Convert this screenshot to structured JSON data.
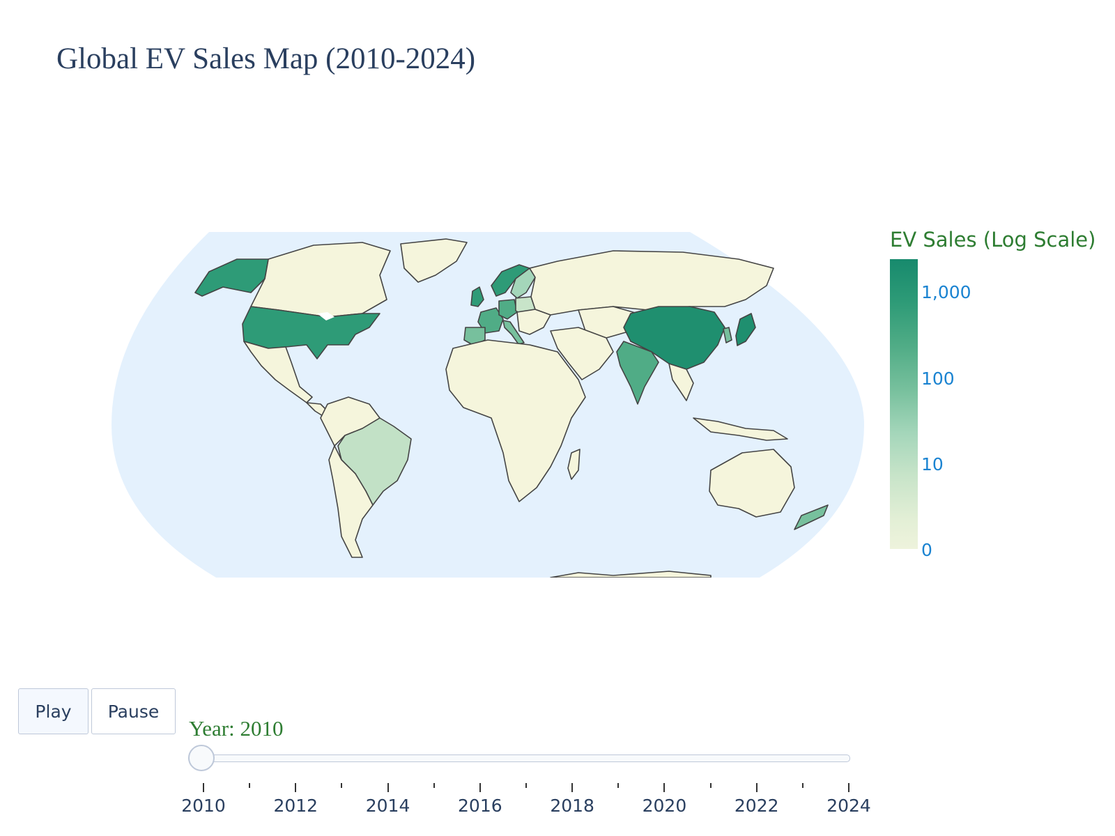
{
  "title": "Global EV Sales Map (2010-2024)",
  "colorbar": {
    "title": "EV Sales (Log Scale)",
    "ticks": [
      "1,000",
      "100",
      "10",
      "0"
    ],
    "colors": [
      "#178a6d",
      "#2e9b77",
      "#50ac86",
      "#77c09d",
      "#a4d6ba",
      "#c8e4c9",
      "#eef3dc"
    ]
  },
  "controls": {
    "play_label": "Play",
    "pause_label": "Pause"
  },
  "slider": {
    "current_label": "Year: 2010",
    "current_value": 2010,
    "min": 2010,
    "max": 2024,
    "tick_labels": [
      "2010",
      "2012",
      "2014",
      "2016",
      "2018",
      "2020",
      "2022",
      "2024"
    ]
  },
  "map": {
    "ocean_color": "#e4f1fd",
    "land_color": "#f5f5dc",
    "border_color": "#444444",
    "highlighted_countries": [
      {
        "name": "China",
        "color": "#1f8f6f"
      },
      {
        "name": "Japan",
        "color": "#1f8f6f"
      },
      {
        "name": "United States",
        "color": "#2e9b77"
      },
      {
        "name": "Alaska",
        "color": "#2e9b77"
      },
      {
        "name": "Norway",
        "color": "#2e9b77"
      },
      {
        "name": "United Kingdom",
        "color": "#2e9b77"
      },
      {
        "name": "India",
        "color": "#50ac86"
      },
      {
        "name": "France",
        "color": "#50ac86"
      },
      {
        "name": "Germany",
        "color": "#50ac86"
      },
      {
        "name": "Spain",
        "color": "#77c09d"
      },
      {
        "name": "Italy",
        "color": "#77c09d"
      },
      {
        "name": "South Korea",
        "color": "#77c09d"
      },
      {
        "name": "New Zealand",
        "color": "#77c09d"
      },
      {
        "name": "Sweden",
        "color": "#a4d6ba"
      },
      {
        "name": "Poland",
        "color": "#c8e4c9"
      },
      {
        "name": "Brazil",
        "color": "#c2e1c6"
      }
    ]
  }
}
